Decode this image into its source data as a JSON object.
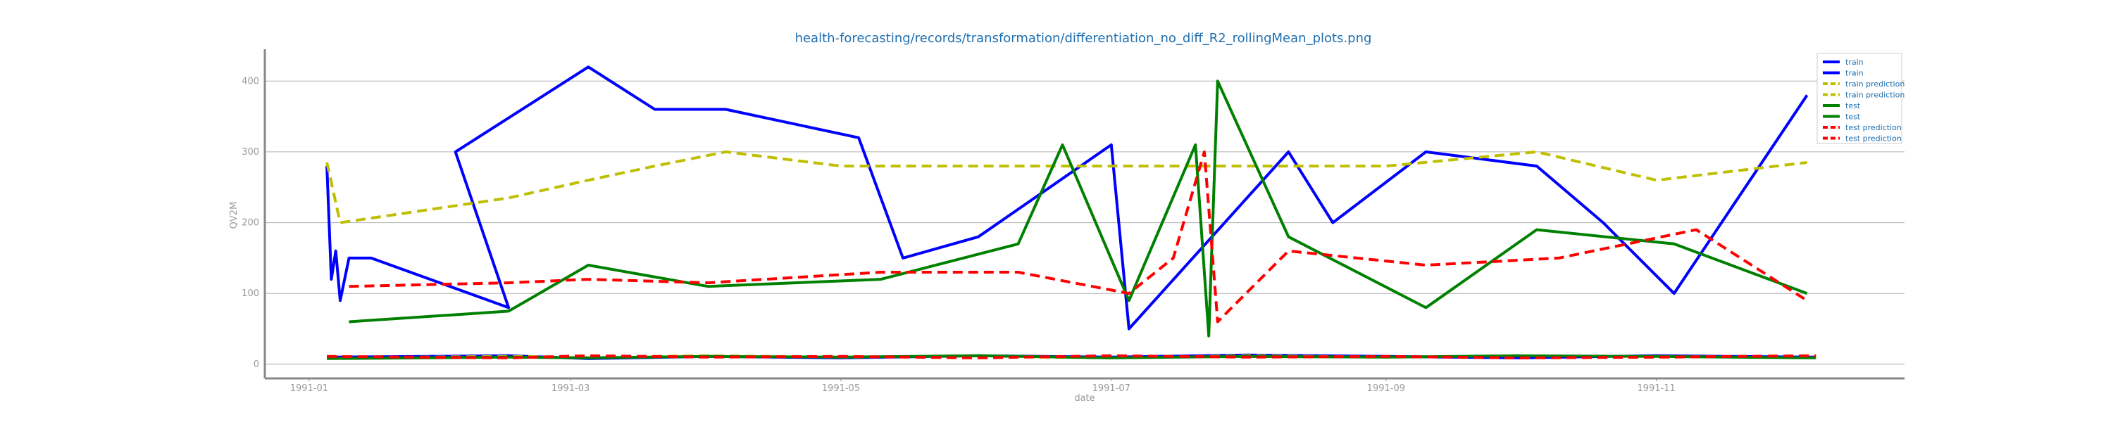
{
  "chart_data": {
    "type": "line",
    "title": "health-forecasting/records/transformation/differentiation_no_diff_R2_rollingMean_plots.png",
    "xlabel": "date",
    "ylabel": "QV2M",
    "xlim": [
      "1990-12-22",
      "1991-12-27"
    ],
    "ylim": [
      -20,
      445
    ],
    "x_ticks": [
      "1991-01",
      "1991-03",
      "1991-05",
      "1991-07",
      "1991-09",
      "1991-11"
    ],
    "y_ticks": [
      0,
      100,
      200,
      300,
      400
    ],
    "grid": "horizontal",
    "legend_position": "top-right",
    "series": [
      {
        "name": "train",
        "color": "#0000ff",
        "style": "solid",
        "x": [
          "1991-01-05",
          "1991-01-06",
          "1991-01-07",
          "1991-01-08",
          "1991-01-10",
          "1991-01-15",
          "1991-02-15",
          "1991-02-03",
          "1991-03-05",
          "1991-03-20",
          "1991-04-05",
          "1991-05-05",
          "1991-05-15",
          "1991-06-01",
          "1991-07-01",
          "1991-07-05",
          "1991-08-10",
          "1991-08-20",
          "1991-09-10",
          "1991-10-05",
          "1991-10-20",
          "1991-11-05",
          "1991-11-20",
          "1991-12-05"
        ],
        "y": [
          280,
          120,
          160,
          90,
          150,
          150,
          80,
          300,
          420,
          360,
          360,
          320,
          150,
          180,
          310,
          50,
          300,
          200,
          300,
          280,
          200,
          100,
          240,
          380
        ]
      },
      {
        "name": "train",
        "color": "#0000ff",
        "style": "solid",
        "x": [
          "1991-01-05",
          "1991-02-15",
          "1991-03-05",
          "1991-04-01",
          "1991-05-01",
          "1991-06-01",
          "1991-07-01",
          "1991-08-01",
          "1991-09-01",
          "1991-10-01",
          "1991-11-01",
          "1991-12-07"
        ],
        "y": [
          10,
          12,
          8,
          11,
          9,
          12,
          10,
          13,
          11,
          9,
          12,
          10
        ]
      },
      {
        "name": "train prediction",
        "color": "#bfbf00",
        "style": "dashed",
        "x": [
          "1991-01-05",
          "1991-01-08",
          "1991-02-15",
          "1991-03-05",
          "1991-03-20",
          "1991-04-05",
          "1991-05-01",
          "1991-06-01",
          "1991-07-01",
          "1991-08-01",
          "1991-09-01",
          "1991-10-05",
          "1991-11-01",
          "1991-12-05"
        ],
        "y": [
          285,
          200,
          235,
          260,
          280,
          300,
          280,
          280,
          280,
          280,
          280,
          300,
          260,
          285
        ]
      },
      {
        "name": "train prediction",
        "color": "#bfbf00",
        "style": "dashed",
        "x": [
          "1991-01-05",
          "1991-02-15",
          "1991-03-05",
          "1991-04-01",
          "1991-05-01",
          "1991-06-01",
          "1991-07-01",
          "1991-08-01",
          "1991-09-01",
          "1991-10-01",
          "1991-11-01",
          "1991-12-07"
        ],
        "y": [
          9,
          11,
          10,
          12,
          10,
          11,
          9,
          12,
          10,
          11,
          10,
          12
        ]
      },
      {
        "name": "test",
        "color": "#008000",
        "style": "solid",
        "x": [
          "1991-01-10",
          "1991-02-15",
          "1991-03-05",
          "1991-04-01",
          "1991-05-10",
          "1991-06-10",
          "1991-06-20",
          "1991-07-05",
          "1991-07-20",
          "1991-07-23",
          "1991-07-25",
          "1991-08-10",
          "1991-09-10",
          "1991-10-05",
          "1991-11-05",
          "1991-12-05"
        ],
        "y": [
          60,
          75,
          140,
          110,
          120,
          170,
          310,
          90,
          310,
          40,
          400,
          180,
          80,
          190,
          170,
          100
        ]
      },
      {
        "name": "test",
        "color": "#008000",
        "style": "solid",
        "x": [
          "1991-01-05",
          "1991-02-15",
          "1991-03-05",
          "1991-04-01",
          "1991-05-01",
          "1991-06-01",
          "1991-07-01",
          "1991-08-01",
          "1991-09-01",
          "1991-10-01",
          "1991-11-01",
          "1991-12-07"
        ],
        "y": [
          8,
          10,
          9,
          11,
          10,
          12,
          9,
          11,
          10,
          12,
          11,
          9
        ]
      },
      {
        "name": "test prediction",
        "color": "#ff0000",
        "style": "dashed",
        "x": [
          "1991-01-10",
          "1991-02-15",
          "1991-03-05",
          "1991-04-01",
          "1991-05-10",
          "1991-06-10",
          "1991-07-05",
          "1991-07-15",
          "1991-07-22",
          "1991-07-25",
          "1991-08-10",
          "1991-09-10",
          "1991-10-10",
          "1991-11-10",
          "1991-12-05"
        ],
        "y": [
          110,
          115,
          120,
          115,
          130,
          130,
          100,
          150,
          300,
          60,
          160,
          140,
          150,
          190,
          90
        ]
      },
      {
        "name": "test prediction",
        "color": "#ff0000",
        "style": "dashed",
        "x": [
          "1991-01-05",
          "1991-02-15",
          "1991-03-05",
          "1991-04-01",
          "1991-05-01",
          "1991-06-01",
          "1991-07-01",
          "1991-08-01",
          "1991-09-01",
          "1991-10-01",
          "1991-11-01",
          "1991-12-07"
        ],
        "y": [
          11,
          9,
          12,
          10,
          11,
          9,
          12,
          10,
          11,
          9,
          10,
          12
        ]
      }
    ]
  }
}
